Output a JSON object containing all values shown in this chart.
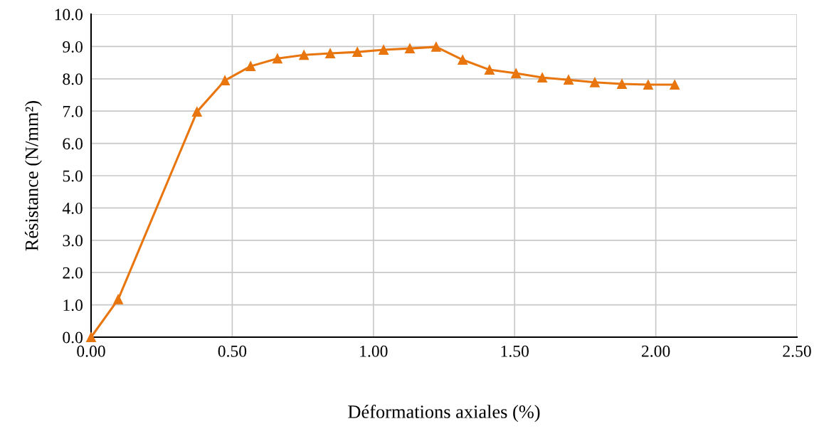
{
  "chart_data": {
    "type": "line",
    "xlabel": "Déformations axiales (%)",
    "ylabel": "Résistance (N/mm²)",
    "x": [
      0,
      0.096,
      0.375,
      0.474,
      0.565,
      0.66,
      0.754,
      0.847,
      0.943,
      1.036,
      1.129,
      1.222,
      1.316,
      1.411,
      1.505,
      1.598,
      1.691,
      1.784,
      1.88,
      1.973,
      2.067
    ],
    "series": [
      {
        "color": "#e8750e",
        "values": [
          0,
          1.17,
          6.98,
          7.95,
          8.39,
          8.63,
          8.74,
          8.79,
          8.83,
          8.9,
          8.94,
          8.99,
          8.59,
          8.28,
          8.17,
          8.04,
          7.97,
          7.89,
          7.84,
          7.82,
          7.82
        ]
      }
    ],
    "xlim": [
      0,
      2.5
    ],
    "xticks": [
      {
        "value": 0,
        "label": "0.00"
      },
      {
        "value": 0.5,
        "label": "0.50"
      },
      {
        "value": 1,
        "label": "1.00"
      },
      {
        "value": 1.5,
        "label": "1.50"
      },
      {
        "value": 2,
        "label": "2.00"
      },
      {
        "value": 2.5,
        "label": "2.50"
      }
    ],
    "ylim": [
      0,
      10
    ],
    "yticks": [
      {
        "value": 0,
        "label": "0.0"
      },
      {
        "value": 1,
        "label": "1.0"
      },
      {
        "value": 2,
        "label": "2.0"
      },
      {
        "value": 3,
        "label": "3.0"
      },
      {
        "value": 4,
        "label": "4.0"
      },
      {
        "value": 5,
        "label": "5.0"
      },
      {
        "value": 6,
        "label": "6.0"
      },
      {
        "value": 7,
        "label": "7.0"
      },
      {
        "value": 8,
        "label": "8.0"
      },
      {
        "value": 9,
        "label": "9.0"
      },
      {
        "value": 10,
        "label": "10.0"
      }
    ],
    "grid": true,
    "legend": false,
    "marker": "triangle",
    "line_style": "solid"
  }
}
